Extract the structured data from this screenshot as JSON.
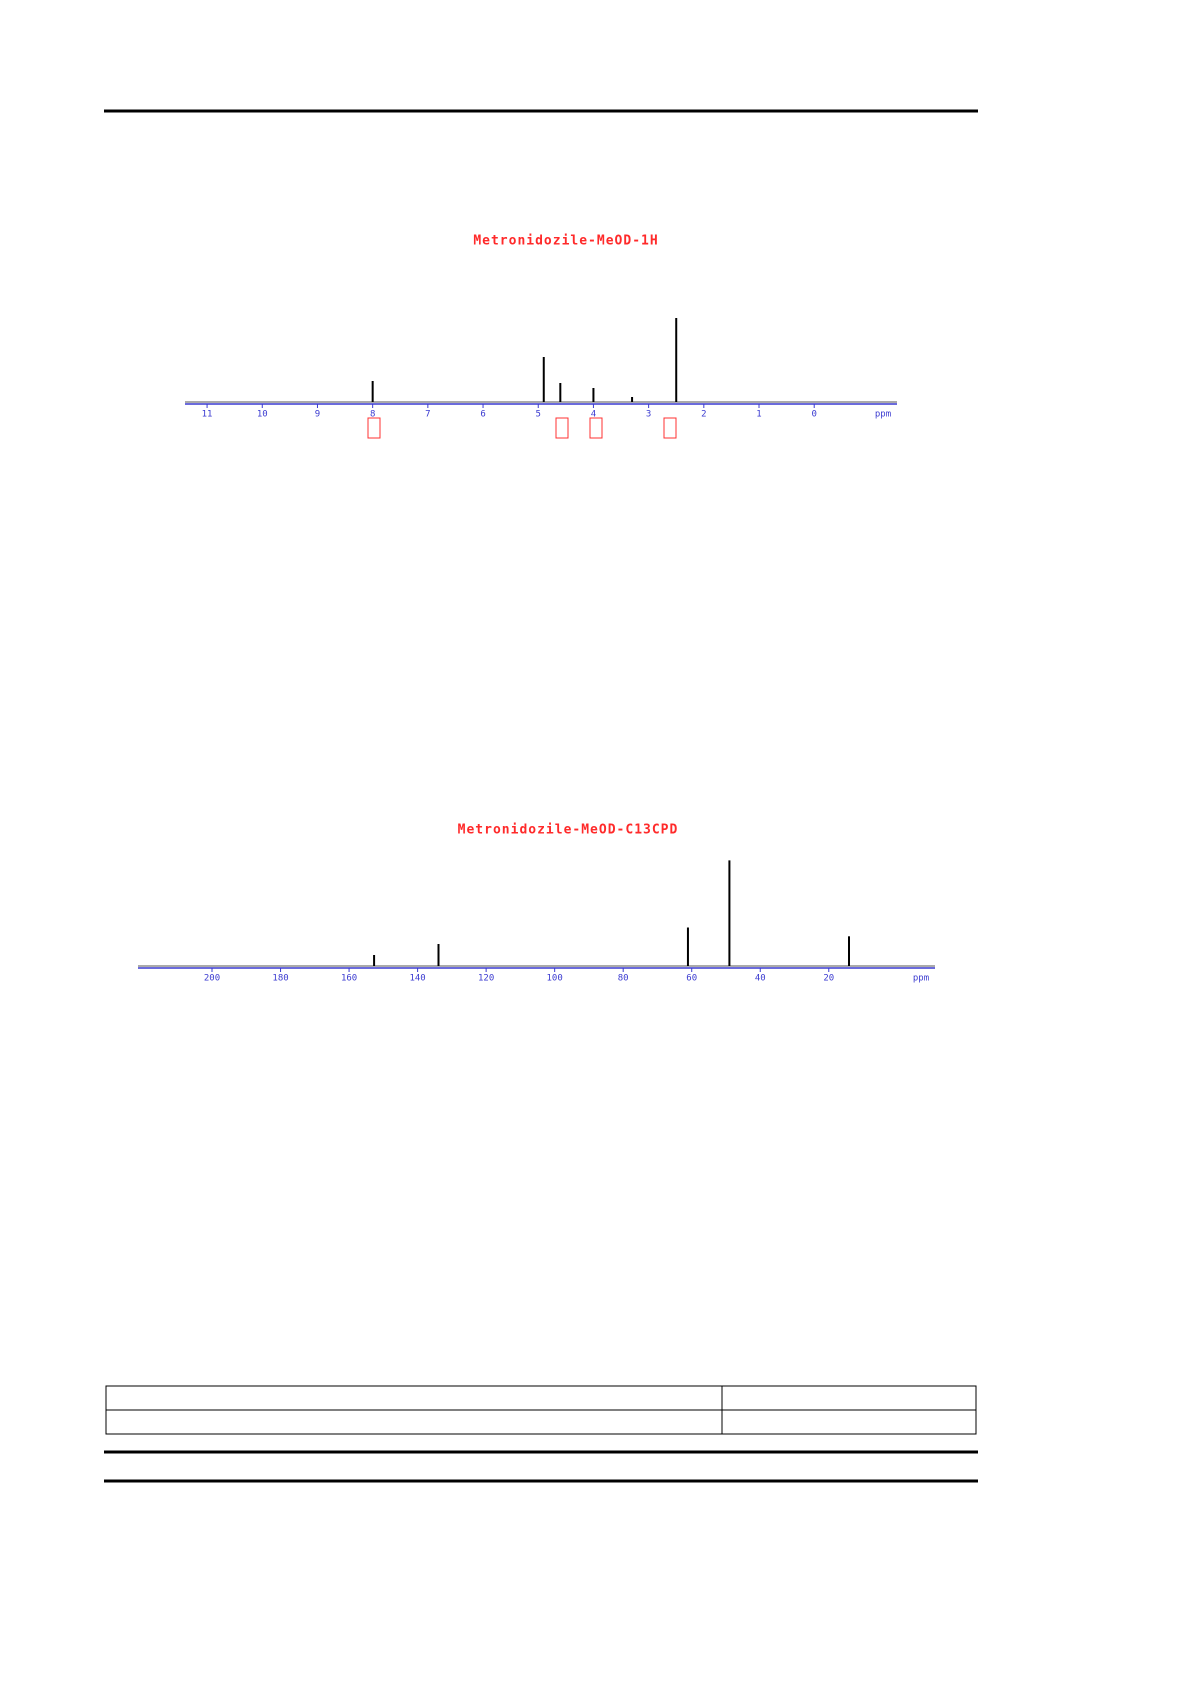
{
  "chart_data": [
    {
      "type": "spectrum",
      "title": "Metronidozile-MeOD-1H",
      "x_label": "ppm",
      "color": "#000000",
      "axis_color": "#3a3ad0",
      "x": [
        8.0,
        4.9,
        4.6,
        4.0,
        3.3,
        2.5
      ],
      "values": [
        21,
        45,
        19,
        14,
        5,
        84
      ],
      "xlim": [
        11.4,
        -1.5
      ],
      "xticks": [
        11,
        10,
        9,
        8,
        7,
        6,
        5,
        4,
        3,
        2,
        1,
        0
      ],
      "ylim": [
        0,
        100
      ]
    },
    {
      "type": "spectrum",
      "title": "Metronidozile-MeOD-C13CPD",
      "x_label": "ppm",
      "color": "#000000",
      "axis_color": "#3a3ad0",
      "x": [
        152.7,
        133.9,
        61.1,
        49.0,
        14.1
      ],
      "values": [
        10,
        20,
        35,
        96,
        27
      ],
      "xlim": [
        221.6,
        -11
      ],
      "xticks": [
        200,
        180,
        160,
        140,
        120,
        100,
        80,
        60,
        40,
        20
      ],
      "ylim": [
        0,
        100
      ]
    }
  ]
}
